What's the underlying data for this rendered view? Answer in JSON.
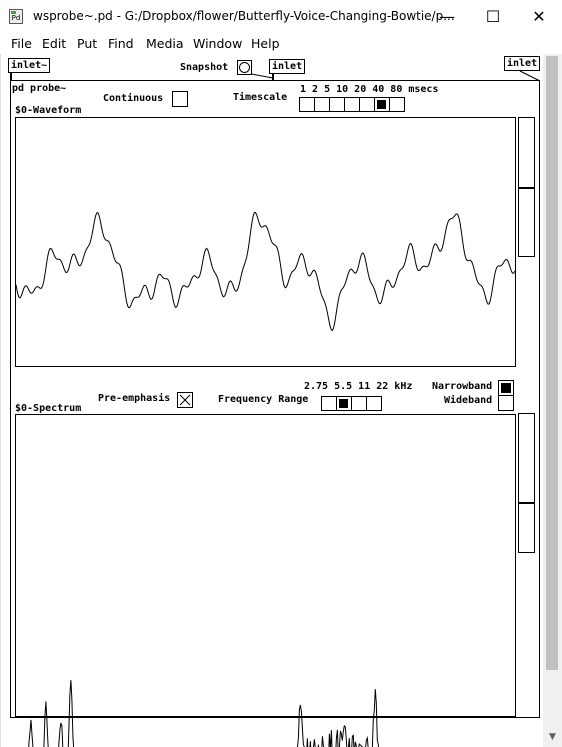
{
  "window": {
    "title": "wsprobe~.pd  - G:/Dropbox/flower/Butterfly-Voice-Changing-Bowtie/p...",
    "minimize": "—",
    "maximize": "☐",
    "close": "✕"
  },
  "menu": [
    "File",
    "Edit",
    "Put",
    "Find",
    "Media",
    "Window",
    "Help"
  ],
  "patch": {
    "inlet_left": "inlet~",
    "snapshot_label": "Snapshot",
    "inlet_mid": "inlet",
    "inlet_right": "inlet",
    "subpatch": "pd probe~",
    "continuous_label": "Continuous",
    "timescale_label": "Timescale",
    "timescale_values": "1  2  5  10  20  40  80  msecs",
    "timescale_selected": 5,
    "timescale_count": 7,
    "waveform_label": "$0-Waveform",
    "preemphasis_label": "Pre-emphasis",
    "preemphasis_checked": true,
    "frequency_label": "Frequency Range",
    "frequency_values": "2.75 5.5 11 22 kHz",
    "frequency_selected": 1,
    "frequency_count": 4,
    "narrowband_label": "Narrowband",
    "wideband_label": "Wideband",
    "narrowband_selected": true,
    "spectrum_label": "$0-Spectrum",
    "waveform_slider_level": 0.25,
    "spectrum_slider_level": 0.3
  }
}
